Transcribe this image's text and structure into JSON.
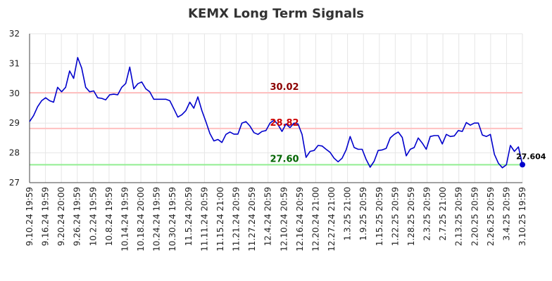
{
  "chart_data": {
    "type": "line",
    "title": "KEMX Long Term Signals",
    "xlabel": "",
    "ylabel": "",
    "ylim": [
      27,
      32
    ],
    "yticks": [
      "27",
      "28",
      "29",
      "30",
      "31",
      "32"
    ],
    "grid": true,
    "x_tick_labels": [
      "9.10.24 19:59",
      "9.16.24 19:59",
      "9.20.24 20:00",
      "9.26.24 19:59",
      "10.2.24 19:59",
      "10.8.24 19:59",
      "10.14.24 19:59",
      "10.18.24 20:00",
      "10.24.24 19:59",
      "10.30.24 19:59",
      "11.5.24 20:59",
      "11.11.24 20:59",
      "11.15.24 21:00",
      "11.21.24 20:59",
      "11.27.24 20:59",
      "12.4.24 20:59",
      "12.10.24 20:59",
      "12.16.24 20:59",
      "12.20.24 21:00",
      "12.27.24 21:00",
      "1.3.25 21:00",
      "1.9.25 20:59",
      "1.15.25 20:59",
      "1.22.25 20:59",
      "1.28.25 20:59",
      "2.3.25 20:59",
      "2.7.25 21:00",
      "2.13.25 20:59",
      "2.20.25 20:59",
      "2.26.25 20:59",
      "3.4.25 20:59",
      "3.10.25 19:59"
    ],
    "series": [
      {
        "color": "#0000cc",
        "values": [
          29.05,
          29.25,
          29.55,
          29.75,
          29.85,
          29.75,
          29.7,
          30.2,
          30.05,
          30.2,
          30.75,
          30.5,
          31.2,
          30.85,
          30.2,
          30.05,
          30.08,
          29.85,
          29.83,
          29.78,
          29.95,
          29.97,
          29.95,
          30.2,
          30.33,
          30.88,
          30.15,
          30.32,
          30.38,
          30.15,
          30.05,
          29.8,
          29.8,
          29.8,
          29.8,
          29.75,
          29.48,
          29.2,
          29.28,
          29.42,
          29.7,
          29.5,
          29.88,
          29.42,
          29.05,
          28.65,
          28.4,
          28.45,
          28.35,
          28.62,
          28.7,
          28.63,
          28.63,
          29.0,
          29.05,
          28.9,
          28.68,
          28.62,
          28.72,
          28.75,
          29.0,
          29.1,
          28.95,
          28.72,
          28.97,
          28.85,
          29.0,
          28.97,
          28.62,
          27.85,
          28.05,
          28.08,
          28.25,
          28.23,
          28.12,
          28.02,
          27.82,
          27.7,
          27.82,
          28.1,
          28.55,
          28.18,
          28.12,
          28.12,
          27.78,
          27.52,
          27.72,
          28.08,
          28.1,
          28.15,
          28.5,
          28.62,
          28.7,
          28.52,
          27.9,
          28.12,
          28.18,
          28.5,
          28.33,
          28.12,
          28.55,
          28.58,
          28.58,
          28.3,
          28.62,
          28.55,
          28.57,
          28.75,
          28.72,
          29.02,
          28.93,
          29.0,
          29.0,
          28.6,
          28.55,
          28.62,
          27.95,
          27.65,
          27.5,
          27.6,
          28.25,
          28.05,
          28.2,
          27.604
        ]
      }
    ],
    "hlines": [
      {
        "value": 30.02,
        "label": "30.02",
        "line_color": "#ffc0c0",
        "label_color": "#8b0000"
      },
      {
        "value": 28.82,
        "label": "28.82",
        "line_color": "#ffc0c0",
        "label_color": "#cc0000"
      },
      {
        "value": 27.6,
        "label": "27.60",
        "line_color": "#90ee90",
        "label_color": "#006400"
      }
    ],
    "last_value_label": "27.604",
    "gridline_color": "#e6e6e6"
  }
}
